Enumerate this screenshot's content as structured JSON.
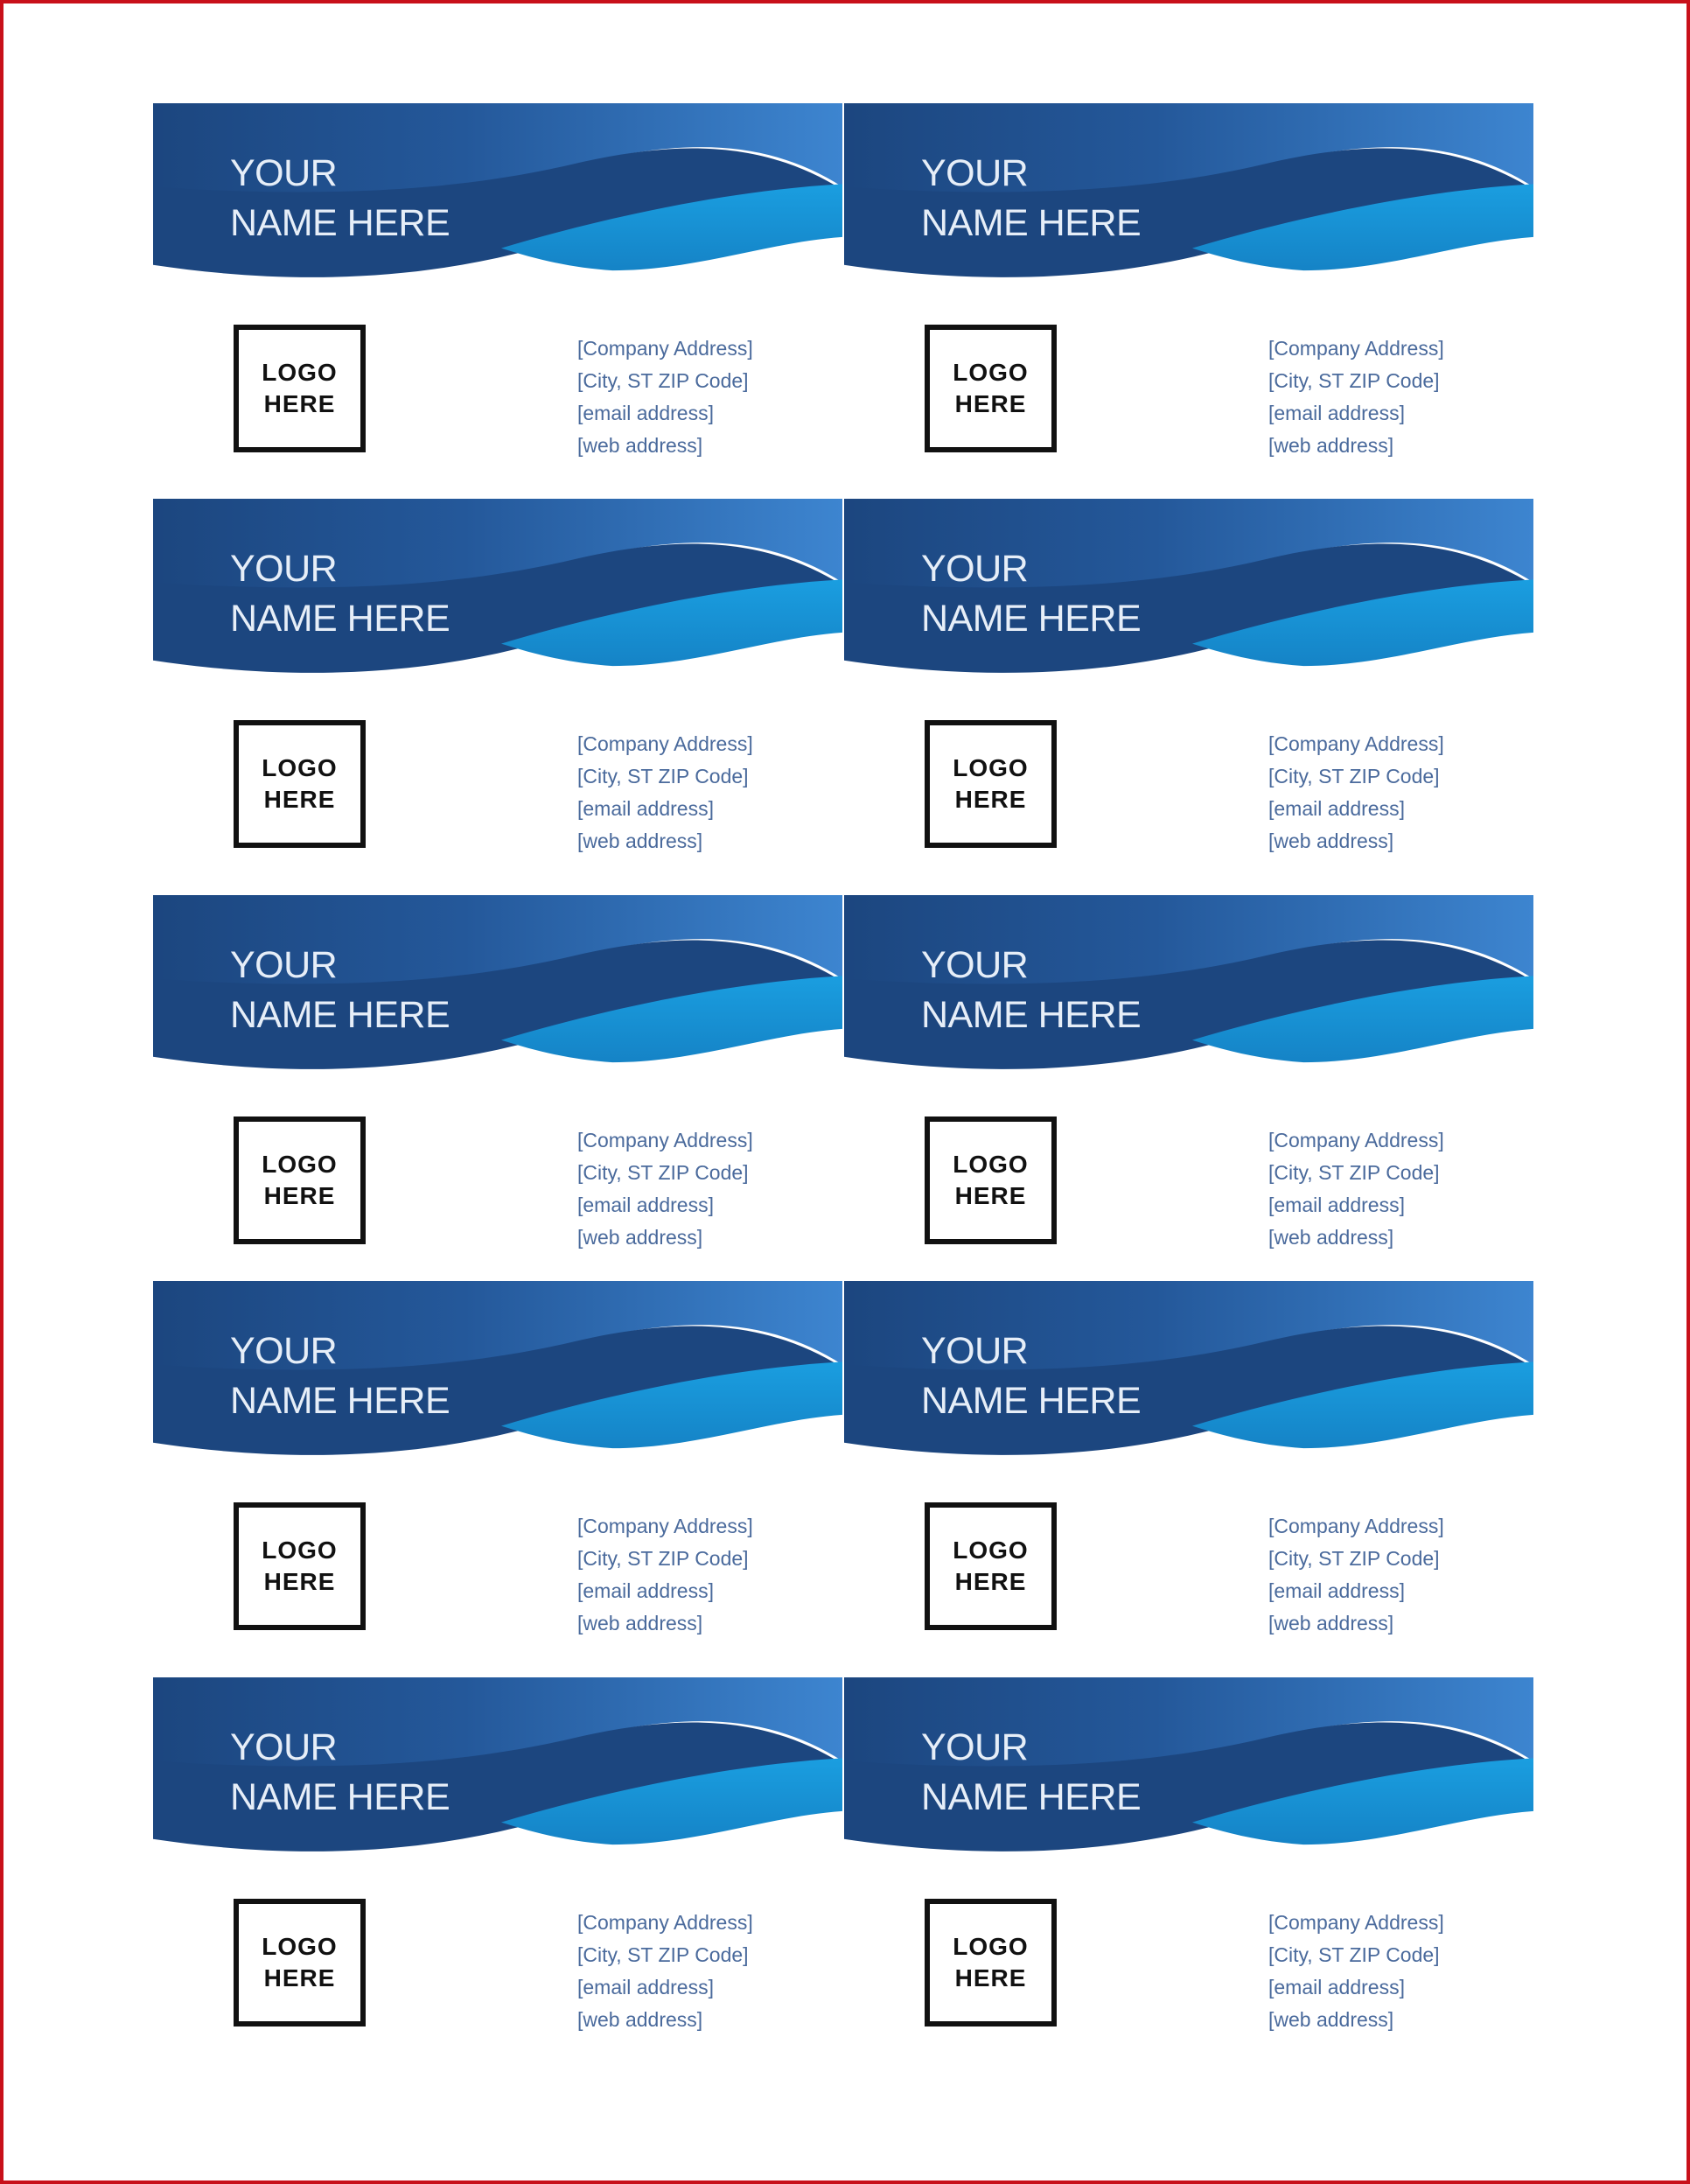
{
  "colors": {
    "banner_dark": "#1c467f",
    "banner_light": "#3d85d0",
    "wave_cyan": "#1a9ee0",
    "text_blue": "#4a6a9c",
    "frame_red": "#c8101a"
  },
  "cards": [
    {
      "name_line1": "YOUR",
      "name_line2": "NAME HERE",
      "logo_line1": "LOGO",
      "logo_line2": "HERE",
      "address": [
        "[Company Address]",
        "[City, ST  ZIP Code]",
        "[email address]",
        "[web address]"
      ]
    },
    {
      "name_line1": "YOUR",
      "name_line2": "NAME HERE",
      "logo_line1": "LOGO",
      "logo_line2": "HERE",
      "address": [
        "[Company Address]",
        "[City, ST  ZIP Code]",
        "[email address]",
        "[web address]"
      ]
    },
    {
      "name_line1": "YOUR",
      "name_line2": "NAME HERE",
      "logo_line1": "LOGO",
      "logo_line2": "HERE",
      "address": [
        "[Company Address]",
        "[City, ST  ZIP Code]",
        "[email address]",
        "[web address]"
      ]
    },
    {
      "name_line1": "YOUR",
      "name_line2": "NAME HERE",
      "logo_line1": "LOGO",
      "logo_line2": "HERE",
      "address": [
        "[Company Address]",
        "[City, ST  ZIP Code]",
        "[email address]",
        "[web address]"
      ]
    },
    {
      "name_line1": "YOUR",
      "name_line2": "NAME HERE",
      "logo_line1": "LOGO",
      "logo_line2": "HERE",
      "address": [
        "[Company Address]",
        "[City, ST  ZIP Code]",
        "[email address]",
        "[web address]"
      ]
    },
    {
      "name_line1": "YOUR",
      "name_line2": "NAME HERE",
      "logo_line1": "LOGO",
      "logo_line2": "HERE",
      "address": [
        "[Company Address]",
        "[City, ST  ZIP Code]",
        "[email address]",
        "[web address]"
      ]
    },
    {
      "name_line1": "YOUR",
      "name_line2": "NAME HERE",
      "logo_line1": "LOGO",
      "logo_line2": "HERE",
      "address": [
        "[Company Address]",
        "[City, ST  ZIP Code]",
        "[email address]",
        "[web address]"
      ]
    },
    {
      "name_line1": "YOUR",
      "name_line2": "NAME HERE",
      "logo_line1": "LOGO",
      "logo_line2": "HERE",
      "address": [
        "[Company Address]",
        "[City, ST  ZIP Code]",
        "[email address]",
        "[web address]"
      ]
    },
    {
      "name_line1": "YOUR",
      "name_line2": "NAME HERE",
      "logo_line1": "LOGO",
      "logo_line2": "HERE",
      "address": [
        "[Company Address]",
        "[City, ST  ZIP Code]",
        "[email address]",
        "[web address]"
      ]
    },
    {
      "name_line1": "YOUR",
      "name_line2": "NAME HERE",
      "logo_line1": "LOGO",
      "logo_line2": "HERE",
      "address": [
        "[Company Address]",
        "[City, ST  ZIP Code]",
        "[email address]",
        "[web address]"
      ]
    }
  ]
}
